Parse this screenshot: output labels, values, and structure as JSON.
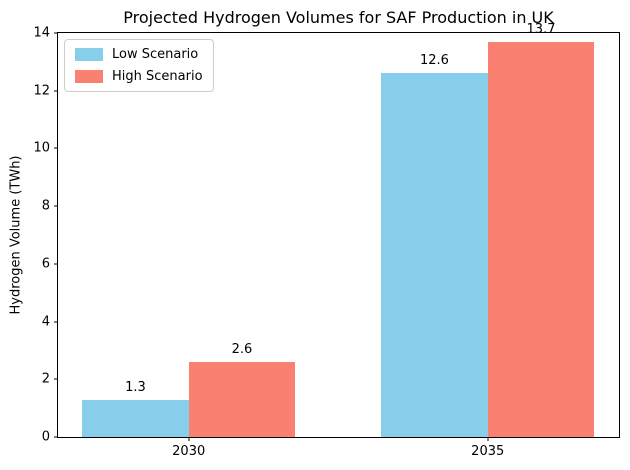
{
  "figure": {
    "background": "#ffffff",
    "spine_color": "#000000",
    "text_color": "#000000"
  },
  "chart_data": {
    "type": "bar",
    "title": "Projected Hydrogen Volumes for SAF Production in UK",
    "xlabel": "",
    "ylabel": "Hydrogen Volume (TWh)",
    "categories": [
      "2030",
      "2035"
    ],
    "series": [
      {
        "name": "Low Scenario",
        "color": "#87CEEB",
        "values": [
          1.3,
          12.6
        ]
      },
      {
        "name": "High Scenario",
        "color": "#FA8072",
        "values": [
          2.6,
          13.7
        ]
      }
    ],
    "bar_value_labels": [
      [
        "1.3",
        "12.6"
      ],
      [
        "2.6",
        "13.7"
      ]
    ],
    "ylim": [
      0,
      14
    ],
    "yticks": [
      0,
      2,
      4,
      6,
      8,
      10,
      12,
      14
    ],
    "grid": false,
    "legend": {
      "position": "upper-left",
      "entries": [
        "Low Scenario",
        "High Scenario"
      ]
    },
    "layout": {
      "group_centers_frac": [
        0.233,
        0.766
      ],
      "bar_width_frac": 0.19
    }
  }
}
